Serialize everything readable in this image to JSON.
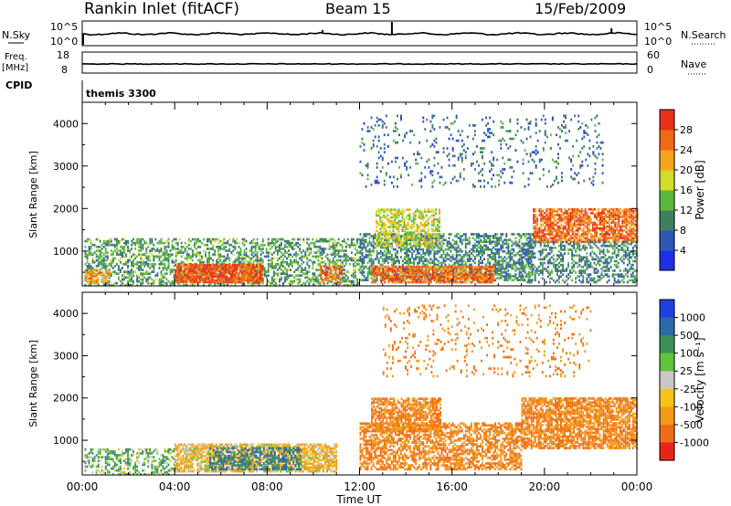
{
  "header": {
    "title": "Rankin Inlet (fitACF)",
    "beam": "Beam 15",
    "date": "15/Feb/2009"
  },
  "strips": {
    "nsky_label": "N.Sky",
    "nsearch_label": "N.Search",
    "nsky_tick_hi": "10^5",
    "nsky_tick_lo": "10^0",
    "freq_label_1": "Freq.",
    "freq_label_2": "[MHz]",
    "freq_tick_hi": "18",
    "freq_tick_lo": "8",
    "nave_label": "Nave",
    "nave_tick_hi": "60",
    "nave_tick_lo": "0",
    "cpid_label": "CPID",
    "cpid_value": "themis 3300"
  },
  "axes": {
    "ylabel": "Slant Range [km]",
    "xlabel": "Time UT",
    "x_ticks": [
      "00:00",
      "04:00",
      "08:00",
      "12:00",
      "16:00",
      "20:00",
      "00:00"
    ],
    "y_ticks": [
      "1000",
      "2000",
      "3000",
      "4000"
    ]
  },
  "power_bar": {
    "label": "Power [dB]",
    "ticks": [
      "4",
      "8",
      "12",
      "16",
      "20",
      "24",
      "28"
    ],
    "colors": [
      "#1f2fe6",
      "#2f57b8",
      "#3f7f5f",
      "#5bb83f",
      "#d2dc2a",
      "#f6a41c",
      "#ef6a15",
      "#e8301a"
    ]
  },
  "velocity_bar": {
    "label": "Velocity [m s⁻¹]",
    "ticks": [
      "1000",
      "500",
      "100",
      "25",
      "-25",
      "-100",
      "-500",
      "-1000"
    ],
    "colors": [
      "#1f3fe0",
      "#2a6aa8",
      "#3f8f5c",
      "#5ec43a",
      "#c8c8c8",
      "#f6c31a",
      "#f39a18",
      "#ef6d16",
      "#e8241a"
    ]
  },
  "chart_data": [
    {
      "type": "line",
      "panel": "N.Sky / N.Search",
      "x_range_hours": [
        0,
        24
      ],
      "y_scale": "log",
      "ylim": [
        "10^0",
        "10^5"
      ],
      "note_series": "noise level roughly constant near 10^2-10^3 with spikes near 10:00, 13:00 and 23:00"
    },
    {
      "type": "heatmap",
      "panel": "Power",
      "title": "",
      "xlabel": "Time UT",
      "ylabel": "Slant Range [km]",
      "x_range_hours": [
        0,
        24
      ],
      "ylim_km": [
        180,
        4500
      ],
      "colorbar": {
        "label": "Power [dB]",
        "ticks": [
          4,
          8,
          12,
          16,
          20,
          24,
          28
        ]
      },
      "regions": [
        {
          "t0": 0.1,
          "t1": 12.0,
          "r0": 180,
          "r1": 1300,
          "level": 12,
          "density": 0.45
        },
        {
          "t0": 4.0,
          "t1": 7.8,
          "r0": 250,
          "r1": 700,
          "level": 28,
          "density": 0.9
        },
        {
          "t0": 0.1,
          "t1": 1.2,
          "r0": 250,
          "r1": 550,
          "level": 24,
          "density": 0.6
        },
        {
          "t0": 10.3,
          "t1": 11.2,
          "r0": 250,
          "r1": 650,
          "level": 26,
          "density": 0.6
        },
        {
          "t0": 12.0,
          "t1": 19.5,
          "r0": 300,
          "r1": 1400,
          "level": 10,
          "density": 0.55
        },
        {
          "t0": 12.5,
          "t1": 17.8,
          "r0": 250,
          "r1": 650,
          "level": 26,
          "density": 0.8
        },
        {
          "t0": 12.7,
          "t1": 15.5,
          "r0": 1100,
          "r1": 2000,
          "level": 18,
          "density": 0.55
        },
        {
          "t0": 19.5,
          "t1": 24.0,
          "r0": 1200,
          "r1": 2000,
          "level": 26,
          "density": 0.75
        },
        {
          "t0": 19.0,
          "t1": 24.0,
          "r0": 250,
          "r1": 1200,
          "level": 10,
          "density": 0.4
        },
        {
          "t0": 12.0,
          "t1": 22.5,
          "r0": 2500,
          "r1": 4200,
          "level": 8,
          "density": 0.1
        }
      ]
    },
    {
      "type": "heatmap",
      "panel": "Velocity",
      "title": "",
      "xlabel": "Time UT",
      "ylabel": "Slant Range [km]",
      "x_range_hours": [
        0,
        24
      ],
      "ylim_km": [
        180,
        4500
      ],
      "colorbar": {
        "label": "Velocity [m s⁻¹]",
        "ticks": [
          1000,
          500,
          100,
          25,
          -25,
          -100,
          -500,
          -1000
        ]
      },
      "regions": [
        {
          "t0": 0.1,
          "t1": 4.0,
          "r0": 180,
          "r1": 800,
          "level": 100,
          "density": 0.45
        },
        {
          "t0": 4.0,
          "t1": 11.0,
          "r0": 250,
          "r1": 900,
          "level": -100,
          "density": 0.75
        },
        {
          "t0": 5.5,
          "t1": 9.5,
          "r0": 300,
          "r1": 800,
          "level": 500,
          "density": 0.5
        },
        {
          "t0": 12.5,
          "t1": 15.5,
          "r0": 1200,
          "r1": 2000,
          "level": -500,
          "density": 0.7
        },
        {
          "t0": 12.0,
          "t1": 19.0,
          "r0": 300,
          "r1": 1400,
          "level": -500,
          "density": 0.6
        },
        {
          "t0": 19.0,
          "t1": 24.0,
          "r0": 800,
          "r1": 2000,
          "level": -500,
          "density": 0.75
        },
        {
          "t0": 13.0,
          "t1": 22.0,
          "r0": 2500,
          "r1": 4200,
          "level": -500,
          "density": 0.1
        }
      ]
    }
  ]
}
